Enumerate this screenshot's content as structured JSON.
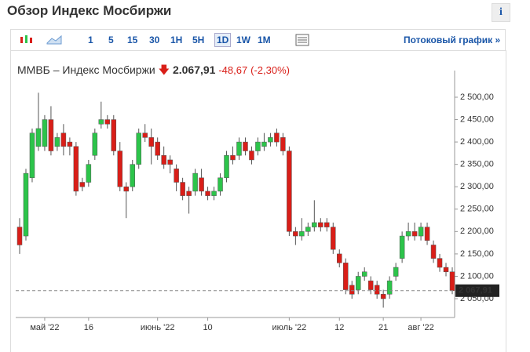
{
  "header": {
    "title": "Обзор Индекс Мосбиржи",
    "info": "i"
  },
  "toolbar": {
    "intervals": [
      "1",
      "5",
      "15",
      "30",
      "1H",
      "5H",
      "1D",
      "1W",
      "1M"
    ],
    "active": "1D",
    "stream": "Потоковый график »"
  },
  "quote": {
    "name": "ММВБ – Индекс Мосбиржи",
    "price": "2.067,91",
    "change": "-48,67",
    "change_pct": "(-2,30%)"
  },
  "chart_data": {
    "type": "candlestick",
    "categories": [
      null,
      null,
      null,
      null,
      "май '22",
      null,
      null,
      null,
      null,
      null,
      null,
      "16",
      null,
      null,
      null,
      null,
      null,
      null,
      null,
      null,
      null,
      null,
      "июнь '22",
      null,
      null,
      null,
      null,
      null,
      null,
      null,
      "10",
      null,
      null,
      null,
      null,
      null,
      null,
      null,
      null,
      null,
      null,
      null,
      null,
      "июль '22",
      null,
      null,
      null,
      null,
      null,
      null,
      null,
      "12",
      null,
      null,
      null,
      null,
      null,
      null,
      "21",
      null,
      null,
      null,
      null,
      null,
      "авг '22",
      null,
      null,
      null,
      null,
      null
    ],
    "open": [
      2210,
      2190,
      2320,
      2390,
      2390,
      2450,
      2390,
      2420,
      2400,
      2390,
      2310,
      2310,
      2370,
      2440,
      2450,
      2450,
      2380,
      2300,
      2300,
      2350,
      2420,
      2410,
      2400,
      2370,
      2360,
      2340,
      2310,
      2290,
      2290,
      2320,
      2290,
      2280,
      2290,
      2320,
      2370,
      2370,
      2400,
      2380,
      2380,
      2390,
      2400,
      2420,
      2410,
      2380,
      2200,
      2190,
      2200,
      2210,
      2220,
      2220,
      2210,
      2150,
      2130,
      2080,
      2070,
      2100,
      2090,
      2080,
      2060,
      2060,
      2100,
      2140,
      2190,
      2200,
      2190,
      2210,
      2170,
      2140,
      2120,
      2110
    ],
    "high": [
      2230,
      2340,
      2430,
      2510,
      2460,
      2480,
      2420,
      2440,
      2410,
      2400,
      2320,
      2360,
      2430,
      2490,
      2460,
      2460,
      2400,
      2310,
      2360,
      2430,
      2440,
      2430,
      2410,
      2390,
      2370,
      2350,
      2320,
      2300,
      2340,
      2340,
      2300,
      2300,
      2330,
      2380,
      2390,
      2410,
      2410,
      2390,
      2410,
      2420,
      2420,
      2430,
      2420,
      2390,
      2210,
      2230,
      2220,
      2270,
      2230,
      2230,
      2220,
      2160,
      2140,
      2090,
      2110,
      2120,
      2100,
      2090,
      2070,
      2100,
      2130,
      2200,
      2220,
      2220,
      2220,
      2220,
      2180,
      2150,
      2130,
      2120
    ],
    "low": [
      2150,
      2180,
      2310,
      2380,
      2380,
      2370,
      2380,
      2370,
      2370,
      2280,
      2290,
      2300,
      2360,
      2430,
      2430,
      2370,
      2290,
      2230,
      2290,
      2340,
      2400,
      2350,
      2360,
      2340,
      2330,
      2290,
      2270,
      2240,
      2280,
      2280,
      2270,
      2270,
      2280,
      2310,
      2350,
      2360,
      2370,
      2350,
      2370,
      2380,
      2390,
      2390,
      2370,
      2190,
      2170,
      2180,
      2190,
      2200,
      2200,
      2200,
      2150,
      2120,
      2060,
      2050,
      2060,
      2090,
      2060,
      2050,
      2030,
      2050,
      2090,
      2130,
      2180,
      2180,
      2180,
      2170,
      2130,
      2110,
      2100,
      2060
    ],
    "close": [
      2170,
      2330,
      2420,
      2430,
      2450,
      2380,
      2410,
      2390,
      2390,
      2290,
      2300,
      2350,
      2420,
      2450,
      2440,
      2380,
      2300,
      2290,
      2350,
      2420,
      2410,
      2390,
      2370,
      2350,
      2350,
      2310,
      2280,
      2280,
      2330,
      2290,
      2280,
      2290,
      2320,
      2370,
      2360,
      2400,
      2380,
      2360,
      2400,
      2400,
      2410,
      2400,
      2380,
      2200,
      2190,
      2200,
      2210,
      2220,
      2210,
      2210,
      2160,
      2130,
      2070,
      2060,
      2100,
      2110,
      2070,
      2060,
      2050,
      2090,
      2120,
      2190,
      2200,
      2190,
      2210,
      2180,
      2140,
      2120,
      2110,
      2067.91
    ],
    "up_color": "#2cc44a",
    "down_color": "#d91e18",
    "price_line": {
      "value": 2067.91,
      "label": "2 067,91"
    },
    "ylim": [
      2008,
      2542
    ],
    "yticks": [
      {
        "value": 2050,
        "label": "2 050,00"
      },
      {
        "value": 2100,
        "label": "2 100,00"
      },
      {
        "value": 2150,
        "label": "2 150,00"
      },
      {
        "value": 2200,
        "label": "2 200,00"
      },
      {
        "value": 2250,
        "label": "2 250,00"
      },
      {
        "value": 2300,
        "label": "2 300,00"
      },
      {
        "value": 2350,
        "label": "2 350,00"
      },
      {
        "value": 2400,
        "label": "2 400,00"
      },
      {
        "value": 2450,
        "label": "2 450,00"
      },
      {
        "value": 2500,
        "label": "2 500,00"
      }
    ]
  }
}
